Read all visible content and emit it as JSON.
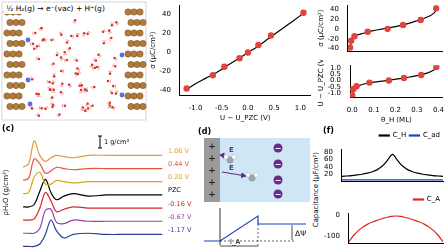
{
  "figure": {
    "snapshot": {
      "reaction": "½ H₂(g) → e⁻(vac) + H⁺(g)"
    },
    "panel_d": {
      "label": "(d)",
      "charge": "+",
      "counter_charge": "−",
      "field": "E",
      "potential_drop": "ΔΨ",
      "length": "l_A"
    },
    "panel_f": {
      "label": "(f)",
      "y_label": "Capacitance (μF/cm²)"
    }
  },
  "chart_data": [
    {
      "type": "scatter",
      "x_label": "U − U_PZC (V)",
      "y_label": "σ (μC/cm²)",
      "grid": false,
      "xlim": [
        -1.3,
        1.2
      ],
      "xticks": [
        {
          "value": -1,
          "label": "-1.0"
        },
        {
          "value": -0.5,
          "label": "-0.5"
        },
        {
          "value": 0,
          "label": "0.0"
        },
        {
          "value": 0.5,
          "label": "0.5"
        },
        {
          "value": 1,
          "label": "1.0"
        }
      ],
      "ylim": [
        -45,
        50
      ],
      "yticks": [
        -40,
        -20,
        0,
        20,
        40
      ],
      "series": [
        {
          "color": "#e0443c",
          "marker": "circle",
          "x": [
            -1.17,
            -0.67,
            -0.45,
            -0.16,
            0,
            0.2,
            0.44,
            1.06
          ],
          "values": [
            -38,
            -24,
            -15,
            -6,
            0,
            8,
            18,
            42
          ]
        },
        {
          "color": "#000000",
          "line_style": "solid",
          "x": [
            -1.2,
            -1,
            -0.8,
            -0.6,
            -0.4,
            -0.2,
            0,
            0.2,
            0.4,
            0.6,
            0.8,
            1.0,
            1.1
          ],
          "values": [
            -40,
            -33,
            -27,
            -21,
            -14,
            -7,
            0,
            7,
            15,
            23,
            31,
            39,
            44
          ]
        }
      ]
    },
    {
      "type": "scatter",
      "y_label": "σ (μC/cm²)",
      "grid": false,
      "tick_labels": "y",
      "xlim": [
        -0.01,
        0.42
      ],
      "xticks": [
        0,
        0.1,
        0.2,
        0.3,
        0.4
      ],
      "ylim": [
        -45,
        48
      ],
      "yticks": [
        -40,
        -20,
        0,
        20,
        40
      ],
      "series": [
        {
          "color": "#e0443c",
          "marker": "circle",
          "x": [
            0,
            0.005,
            0.02,
            0.08,
            0.17,
            0.24,
            0.32,
            0.39
          ],
          "values": [
            -38,
            -24,
            -15,
            -6,
            0,
            8,
            18,
            42
          ]
        },
        {
          "color": "#000000",
          "line_style": "solid",
          "x": [
            0,
            0.01,
            0.03,
            0.06,
            0.1,
            0.15,
            0.2,
            0.25,
            0.3,
            0.35,
            0.38,
            0.4
          ],
          "values": [
            -40,
            -20,
            -13,
            -9,
            -4,
            0,
            4,
            9,
            16,
            24,
            32,
            44
          ]
        }
      ]
    },
    {
      "type": "scatter",
      "x_label": "θ_H (ML)",
      "y_label": "U − U_PZC (V)",
      "grid": false,
      "xlim": [
        -0.01,
        0.42
      ],
      "xticks": [
        {
          "value": 0,
          "label": "0.0"
        },
        {
          "value": 0.1,
          "label": "0.1"
        },
        {
          "value": 0.2,
          "label": "0.2"
        },
        {
          "value": 0.3,
          "label": "0.3"
        },
        {
          "value": 0.4,
          "label": "0.4"
        }
      ],
      "ylim": [
        -1.3,
        1.2
      ],
      "yticks": [
        {
          "value": -1,
          "label": "-1.0"
        },
        {
          "value": -0.5,
          "label": "-0.5"
        },
        {
          "value": 0,
          "label": "0.0"
        },
        {
          "value": 0.5,
          "label": "0.5"
        },
        {
          "value": 1,
          "label": "1.0"
        }
      ],
      "series": [
        {
          "color": "#e0443c",
          "marker": "circle",
          "x": [
            0,
            0.005,
            0.02,
            0.08,
            0.17,
            0.24,
            0.32,
            0.39
          ],
          "values": [
            -1.17,
            -0.67,
            -0.45,
            -0.16,
            0,
            0.2,
            0.44,
            1.06
          ]
        },
        {
          "color": "#000000",
          "line_style": "solid",
          "x": [
            0,
            0.01,
            0.03,
            0.06,
            0.1,
            0.15,
            0.2,
            0.25,
            0.3,
            0.35,
            0.38,
            0.4
          ],
          "values": [
            -1.25,
            -0.6,
            -0.4,
            -0.25,
            -0.12,
            -0.02,
            0.1,
            0.23,
            0.38,
            0.6,
            0.85,
            1.15
          ]
        }
      ]
    },
    {
      "type": "line",
      "panel": "(c)",
      "y_label": "ρH₂O (g/cm³)",
      "grid": false,
      "tick_labels": false,
      "scale_bar": 1,
      "scale_bar_label": "1 g/cm³",
      "xlim": [
        1.3,
        9.2
      ],
      "ylim": [
        -0.3,
        9.3
      ],
      "x": [
        1.5,
        1.8,
        2.1,
        2.4,
        2.7,
        3.0,
        3.3,
        3.7,
        4.2,
        5,
        6,
        7,
        8,
        9
      ],
      "series": [
        {
          "name": "1.06 V",
          "color": "#e69b3a",
          "line_style": "solid",
          "values": [
            6.6,
            6.9,
            8.8,
            7.6,
            7.1,
            7.4,
            7.6,
            7.5,
            7.4,
            7.6,
            7.6,
            7.6,
            7.6,
            7.6
          ]
        },
        {
          "name": "0.44 V",
          "color": "#e8553a",
          "line_style": "solid",
          "values": [
            5.5,
            5.7,
            7.3,
            6.9,
            6.1,
            6.3,
            6.6,
            6.5,
            6.4,
            6.5,
            6.5,
            6.5,
            6.5,
            6.5
          ]
        },
        {
          "name": "0.20 V",
          "color": "#d9a520",
          "line_style": "solid",
          "values": [
            4.4,
            4.5,
            5.8,
            6.2,
            5.2,
            5.2,
            5.5,
            5.4,
            5.3,
            5.4,
            5.4,
            5.4,
            5.4,
            5.4
          ]
        },
        {
          "name": "PZC",
          "color": "#000000",
          "line_style": "solid",
          "values": [
            3.3,
            3.3,
            3.5,
            4.6,
            5.6,
            4.5,
            3.9,
            4.2,
            4.4,
            4.2,
            4.3,
            4.3,
            4.3,
            4.3
          ]
        },
        {
          "name": "-0.16 V",
          "color": "#d62728",
          "line_style": "solid",
          "values": [
            2.2,
            2.2,
            2.3,
            3.2,
            4.5,
            3.8,
            2.9,
            3.1,
            3.3,
            3.2,
            3.2,
            3.2,
            3.2,
            3.2
          ]
        },
        {
          "name": "-0.67 V",
          "color": "#8e44ad",
          "line_style": "solid",
          "values": [
            1.1,
            1.1,
            1.1,
            1.5,
            3.0,
            3.1,
            2.0,
            1.9,
            2.2,
            2.1,
            2.1,
            2.1,
            2.1,
            2.1
          ]
        },
        {
          "name": "-1.17 V",
          "color": "#2c3e9c",
          "line_style": "solid",
          "values": [
            0,
            0,
            0,
            0.2,
            1.0,
            2.2,
            1.3,
            0.7,
            1.0,
            1.1,
            1.0,
            1.0,
            1.0,
            1.0
          ]
        }
      ]
    },
    {
      "type": "line",
      "grid": false,
      "tick_labels": "y",
      "legend": "upper right",
      "xlim": [
        0,
        20
      ],
      "ylim": [
        0,
        90
      ],
      "yticks": [
        20,
        40,
        60,
        80
      ],
      "x": [
        0,
        1,
        2,
        3,
        4,
        5,
        6,
        7,
        8,
        9,
        10,
        11,
        12,
        13,
        14,
        15,
        16,
        17,
        18,
        19,
        20
      ],
      "series": [
        {
          "name": "C_H",
          "color": "#000000",
          "line_style": "solid",
          "values": [
            13,
            14,
            15,
            17,
            19,
            22,
            26,
            32,
            42,
            58,
            75,
            58,
            42,
            32,
            26,
            22,
            19,
            17,
            15,
            14,
            13
          ]
        },
        {
          "name": "C_ad",
          "color": "#1f3fbf",
          "line_style": "solid",
          "values": [
            3,
            3,
            3,
            3,
            3,
            3,
            3,
            3,
            3,
            3,
            3,
            3,
            3,
            3,
            3,
            3,
            3,
            3,
            3,
            3,
            3
          ]
        }
      ]
    },
    {
      "type": "line",
      "grid": false,
      "tick_labels": "y",
      "legend": "upper right",
      "xlim": [
        0,
        20
      ],
      "ylim": [
        -130,
        10
      ],
      "yticks": [
        -100,
        0
      ],
      "x": [
        0,
        1,
        2,
        3,
        4,
        5,
        6,
        7,
        8,
        9,
        10,
        11,
        12,
        13,
        14,
        15,
        16,
        17,
        18,
        19,
        20
      ],
      "series": [
        {
          "name": "C_A",
          "color": "#e0251b",
          "line_style": "solid",
          "values": [
            -125,
            -95,
            -72,
            -55,
            -42,
            -32,
            -24,
            -17,
            -11,
            -6,
            -4,
            -6,
            -11,
            -17,
            -24,
            -32,
            -42,
            -55,
            -72,
            -95,
            -125
          ]
        }
      ]
    }
  ]
}
